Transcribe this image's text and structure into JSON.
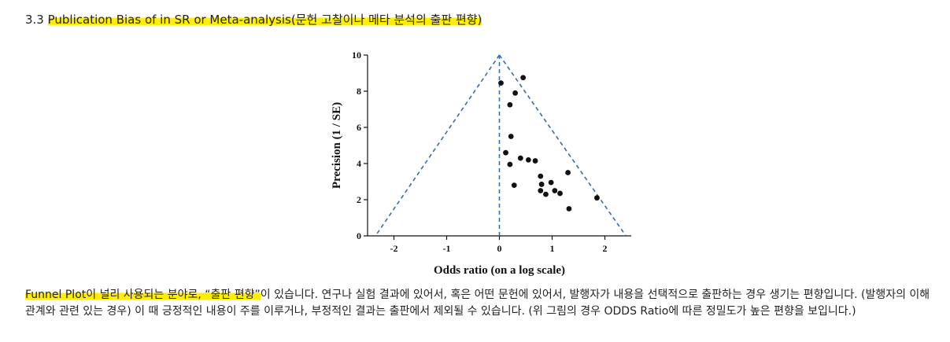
{
  "heading": {
    "number": "3.3 ",
    "title": "Publication Bias of in SR or Meta-analysis(문헌 고찰이나 메타 분석의 출판 편향)"
  },
  "paragraph": {
    "highlight": "Funnel Plot이 널리 사용되는 분야로, “출판 편향”",
    "text": "이 있습니다. 연구나 실험 결과에 있어서, 혹은 어떤 문헌에 있어서, 발행자가 내용을 선택적으로 출판하는 경우 생기는 편향입니다. (발행자의 이해관계와 관련 있는 경우) 이 때 긍정적인 내용이 주를 이루거나, 부정적인 결과는 출판에서 제외될 수 있습니다. (위 그림의 경우 ODDS Ratio에 따른 정밀도가 높은 편향을 보입니다.)"
  },
  "colors": {
    "highlight": "#ffee00",
    "funnel_line": "#3a6ea8",
    "points": "#111111"
  },
  "chart_data": {
    "type": "scatter",
    "xlabel": "Odds ratio (on a log scale)",
    "ylabel": "Precision (1 / SE)",
    "xlim": [
      -2.5,
      2.5
    ],
    "ylim": [
      0,
      10
    ],
    "xticks": [
      "-2",
      "-1",
      "0",
      "1",
      "2"
    ],
    "yticks": [
      "0",
      "2",
      "4",
      "6",
      "8",
      "10"
    ],
    "grid": false,
    "funnel": {
      "apex": [
        0,
        10
      ],
      "left_base": [
        -2.35,
        0
      ],
      "right_base": [
        2.4,
        0
      ],
      "center_line_x": 0
    },
    "points": [
      {
        "x": 0.03,
        "y": 8.45
      },
      {
        "x": 0.45,
        "y": 8.75
      },
      {
        "x": 0.3,
        "y": 7.9
      },
      {
        "x": 0.2,
        "y": 7.25
      },
      {
        "x": 0.22,
        "y": 5.5
      },
      {
        "x": 0.12,
        "y": 4.6
      },
      {
        "x": 0.2,
        "y": 3.95
      },
      {
        "x": 0.4,
        "y": 4.3
      },
      {
        "x": 0.55,
        "y": 4.2
      },
      {
        "x": 0.68,
        "y": 4.15
      },
      {
        "x": 1.3,
        "y": 3.5
      },
      {
        "x": 0.78,
        "y": 3.3
      },
      {
        "x": 0.8,
        "y": 2.85
      },
      {
        "x": 0.98,
        "y": 2.95
      },
      {
        "x": 0.28,
        "y": 2.8
      },
      {
        "x": 0.78,
        "y": 2.5
      },
      {
        "x": 0.88,
        "y": 2.3
      },
      {
        "x": 1.05,
        "y": 2.5
      },
      {
        "x": 1.15,
        "y": 2.35
      },
      {
        "x": 1.85,
        "y": 2.1
      },
      {
        "x": 1.32,
        "y": 1.5
      }
    ]
  }
}
